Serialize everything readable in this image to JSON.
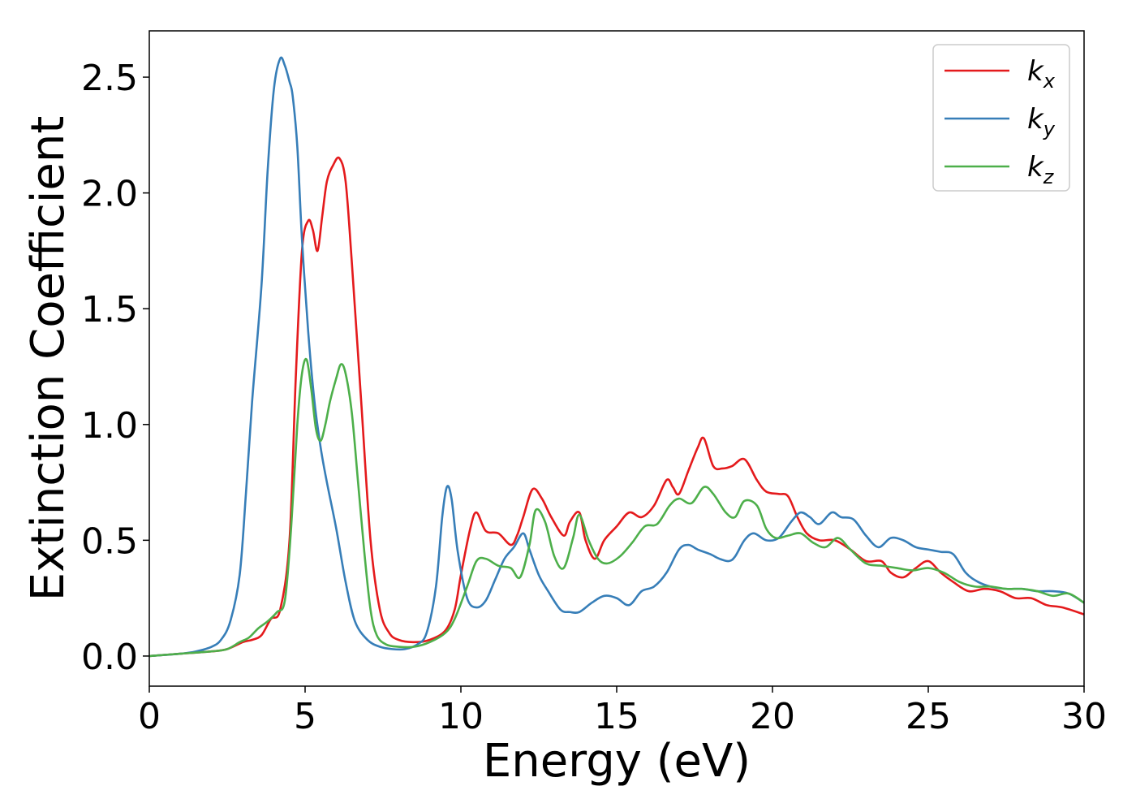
{
  "chart_data": {
    "type": "line",
    "title": "",
    "xlabel": "Energy (eV)",
    "ylabel": "Extinction Coefficient",
    "xlim": [
      0,
      30
    ],
    "ylim": [
      -0.13,
      2.7
    ],
    "xticks": [
      0,
      5,
      10,
      15,
      20,
      25,
      30
    ],
    "yticks": [
      0.0,
      0.5,
      1.0,
      1.5,
      2.0,
      2.5
    ],
    "xtick_labels": [
      "0",
      "5",
      "10",
      "15",
      "20",
      "25",
      "30"
    ],
    "ytick_labels": [
      "0.0",
      "0.5",
      "1.0",
      "1.5",
      "2.0",
      "2.5"
    ],
    "grid": false,
    "legend": "top-right",
    "series": [
      {
        "name": "k_x",
        "label_main": "k",
        "label_sub": "x",
        "color": "#e41a1c",
        "x": [
          0,
          1,
          2,
          2.5,
          3,
          3.3,
          3.6,
          3.9,
          4.2,
          4.5,
          4.7,
          4.9,
          5.1,
          5.25,
          5.4,
          5.55,
          5.7,
          5.9,
          6.1,
          6.3,
          6.5,
          6.8,
          7.1,
          7.4,
          7.7,
          8,
          8.5,
          9,
          9.5,
          9.8,
          10,
          10.3,
          10.5,
          10.8,
          11.2,
          11.6,
          11.8,
          12,
          12.3,
          12.6,
          12.9,
          13.3,
          13.5,
          13.8,
          14,
          14.3,
          14.6,
          15,
          15.4,
          15.8,
          16.2,
          16.6,
          16.8,
          17,
          17.3,
          17.6,
          17.8,
          18.1,
          18.4,
          18.7,
          19.1,
          19.5,
          19.8,
          20.2,
          20.5,
          20.8,
          21.1,
          21.5,
          22,
          22.5,
          23,
          23.5,
          23.8,
          24.2,
          24.6,
          25,
          25.4,
          25.8,
          26.3,
          26.8,
          27.3,
          27.8,
          28.3,
          28.8,
          29.3,
          30
        ],
        "y": [
          0,
          0.01,
          0.02,
          0.03,
          0.06,
          0.07,
          0.09,
          0.16,
          0.2,
          0.5,
          1.2,
          1.75,
          1.88,
          1.84,
          1.75,
          1.9,
          2.05,
          2.12,
          2.15,
          2.05,
          1.7,
          1.1,
          0.5,
          0.2,
          0.1,
          0.07,
          0.06,
          0.07,
          0.11,
          0.2,
          0.35,
          0.55,
          0.62,
          0.54,
          0.53,
          0.48,
          0.52,
          0.6,
          0.72,
          0.68,
          0.6,
          0.52,
          0.58,
          0.62,
          0.5,
          0.42,
          0.5,
          0.56,
          0.62,
          0.6,
          0.65,
          0.76,
          0.73,
          0.7,
          0.8,
          0.9,
          0.94,
          0.82,
          0.81,
          0.82,
          0.85,
          0.76,
          0.71,
          0.7,
          0.69,
          0.6,
          0.53,
          0.5,
          0.5,
          0.46,
          0.41,
          0.41,
          0.36,
          0.34,
          0.38,
          0.41,
          0.36,
          0.32,
          0.28,
          0.29,
          0.28,
          0.25,
          0.25,
          0.22,
          0.21,
          0.18
        ]
      },
      {
        "name": "k_y",
        "label_main": "k",
        "label_sub": "y",
        "color": "#377eb8",
        "x": [
          0,
          1,
          1.5,
          2,
          2.3,
          2.6,
          2.9,
          3.1,
          3.3,
          3.6,
          3.8,
          4,
          4.2,
          4.35,
          4.5,
          4.6,
          4.75,
          4.9,
          5.1,
          5.3,
          5.5,
          5.7,
          6,
          6.3,
          6.6,
          7,
          7.4,
          7.8,
          8.2,
          8.6,
          8.9,
          9.2,
          9.4,
          9.55,
          9.7,
          9.9,
          10.2,
          10.5,
          10.8,
          11.1,
          11.4,
          11.7,
          12,
          12.2,
          12.5,
          12.8,
          13.2,
          13.5,
          13.8,
          14.2,
          14.6,
          15,
          15.4,
          15.8,
          16.2,
          16.6,
          17,
          17.3,
          17.6,
          18,
          18.3,
          18.6,
          18.8,
          19.1,
          19.4,
          19.8,
          20.2,
          20.6,
          20.9,
          21.2,
          21.5,
          21.9,
          22.2,
          22.6,
          23,
          23.4,
          23.8,
          24.2,
          24.6,
          25,
          25.4,
          25.8,
          26.2,
          26.6,
          27,
          27.5,
          28,
          28.5,
          29,
          29.5,
          30
        ],
        "y": [
          0,
          0.01,
          0.02,
          0.04,
          0.07,
          0.15,
          0.35,
          0.7,
          1.1,
          1.6,
          2.1,
          2.45,
          2.58,
          2.55,
          2.48,
          2.42,
          2.2,
          1.8,
          1.4,
          1.1,
          0.9,
          0.75,
          0.55,
          0.32,
          0.15,
          0.07,
          0.04,
          0.03,
          0.03,
          0.05,
          0.1,
          0.3,
          0.6,
          0.73,
          0.68,
          0.45,
          0.25,
          0.21,
          0.24,
          0.33,
          0.42,
          0.47,
          0.53,
          0.46,
          0.35,
          0.28,
          0.2,
          0.19,
          0.19,
          0.23,
          0.26,
          0.25,
          0.22,
          0.28,
          0.3,
          0.36,
          0.46,
          0.48,
          0.46,
          0.44,
          0.42,
          0.41,
          0.43,
          0.5,
          0.53,
          0.5,
          0.51,
          0.58,
          0.62,
          0.6,
          0.57,
          0.62,
          0.6,
          0.59,
          0.52,
          0.47,
          0.51,
          0.5,
          0.47,
          0.46,
          0.45,
          0.44,
          0.36,
          0.32,
          0.3,
          0.29,
          0.29,
          0.28,
          0.28,
          0.27,
          0.23
        ]
      },
      {
        "name": "k_z",
        "label_main": "k",
        "label_sub": "z",
        "color": "#4daf4a",
        "x": [
          0,
          1,
          2,
          2.5,
          2.9,
          3.2,
          3.5,
          3.8,
          4.1,
          4.35,
          4.55,
          4.75,
          4.9,
          5.05,
          5.2,
          5.35,
          5.5,
          5.65,
          5.8,
          6,
          6.15,
          6.3,
          6.5,
          6.7,
          6.9,
          7.1,
          7.3,
          7.6,
          8,
          8.5,
          9,
          9.5,
          9.8,
          10.2,
          10.5,
          10.8,
          11.2,
          11.6,
          11.9,
          12.2,
          12.4,
          12.7,
          13,
          13.3,
          13.6,
          13.8,
          14.1,
          14.4,
          14.7,
          15.1,
          15.5,
          15.9,
          16.3,
          16.7,
          17,
          17.4,
          17.8,
          18.1,
          18.5,
          18.8,
          19.1,
          19.5,
          19.8,
          20.1,
          20.5,
          20.9,
          21.3,
          21.7,
          22.1,
          22.5,
          23,
          23.5,
          24,
          24.5,
          25,
          25.5,
          26,
          26.5,
          27,
          27.5,
          28,
          28.5,
          29,
          29.5,
          30
        ],
        "y": [
          0,
          0.01,
          0.02,
          0.03,
          0.06,
          0.08,
          0.12,
          0.15,
          0.19,
          0.24,
          0.55,
          1.0,
          1.22,
          1.28,
          1.15,
          0.98,
          0.93,
          1.0,
          1.1,
          1.2,
          1.26,
          1.22,
          1.05,
          0.75,
          0.45,
          0.2,
          0.09,
          0.05,
          0.04,
          0.04,
          0.06,
          0.1,
          0.16,
          0.3,
          0.41,
          0.42,
          0.39,
          0.38,
          0.34,
          0.48,
          0.63,
          0.58,
          0.43,
          0.38,
          0.51,
          0.61,
          0.5,
          0.42,
          0.4,
          0.43,
          0.49,
          0.56,
          0.57,
          0.65,
          0.68,
          0.66,
          0.73,
          0.7,
          0.62,
          0.6,
          0.67,
          0.65,
          0.55,
          0.51,
          0.52,
          0.53,
          0.49,
          0.47,
          0.51,
          0.46,
          0.4,
          0.39,
          0.38,
          0.37,
          0.38,
          0.36,
          0.32,
          0.3,
          0.3,
          0.29,
          0.29,
          0.28,
          0.26,
          0.27,
          0.23
        ]
      }
    ]
  }
}
